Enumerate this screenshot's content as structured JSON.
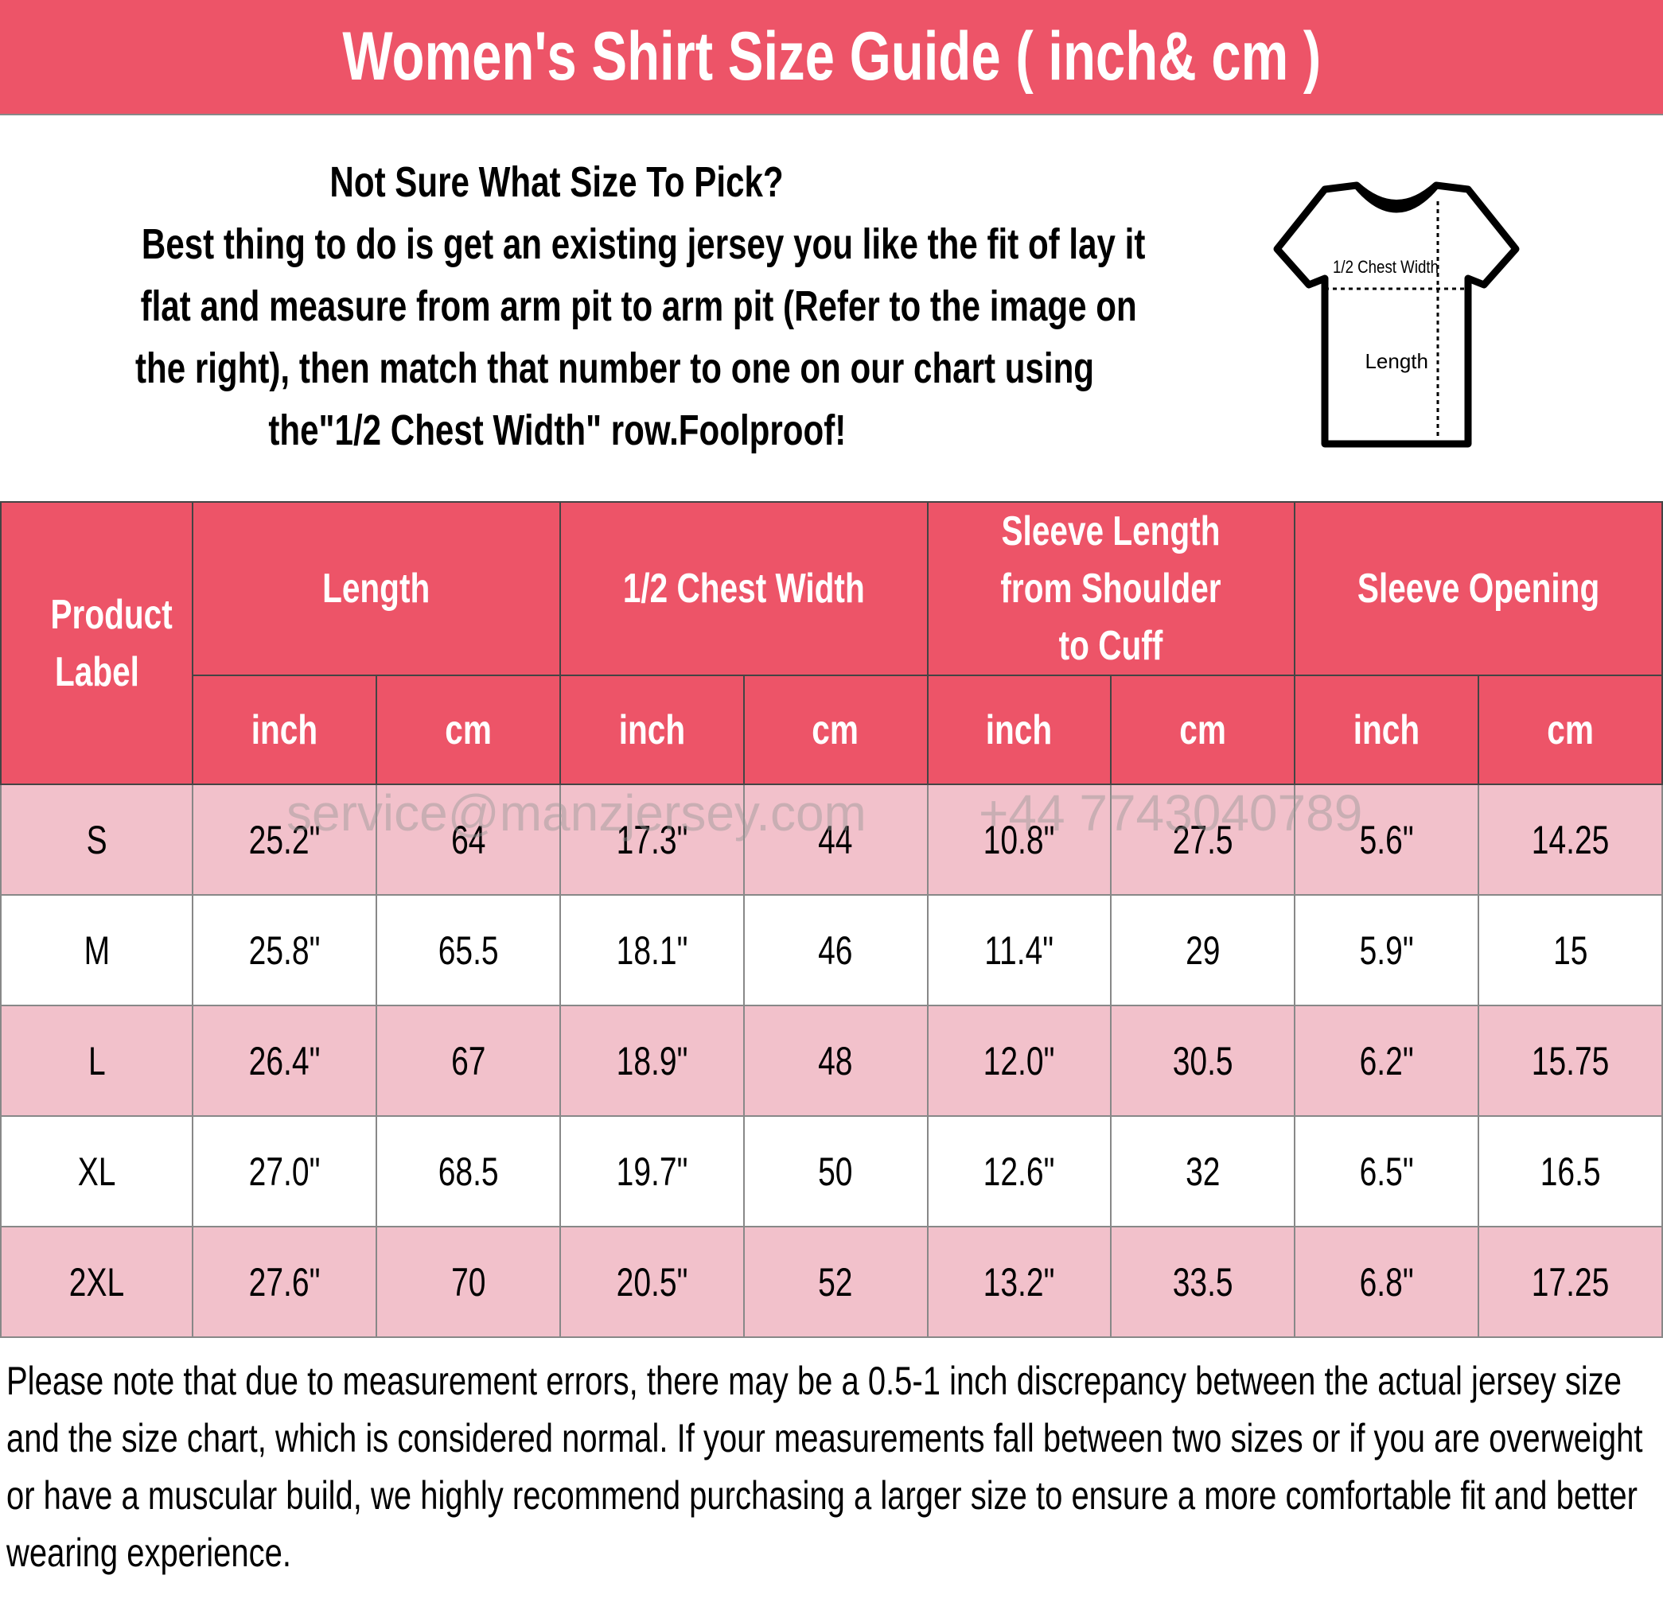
{
  "title": "Women's Shirt Size Guide ( inch& cm )",
  "intro": {
    "lines": [
      "Not Sure What Size To Pick?",
      "Best thing to do is get an existing jersey you like the fit of lay it",
      "flat and measure from arm pit to arm pit (Refer to the image on",
      "the right), then match that number to one on our chart using",
      "the\"1/2 Chest Width\" row.Foolproof!"
    ]
  },
  "diagram": {
    "chest_label": "1/2 Chest Width",
    "length_label": "Length"
  },
  "table": {
    "label_header": "Product Label",
    "groups": [
      "Length",
      "1/2 Chest Width",
      "Sleeve Length from Shoulder to Cuff",
      "Sleeve Opening"
    ],
    "units": [
      "inch",
      "cm",
      "inch",
      "cm",
      "inch",
      "cm",
      "inch",
      "cm"
    ],
    "rows": [
      [
        "S",
        "25.2\"",
        "64",
        "17.3\"",
        "44",
        "10.8\"",
        "27.5",
        "5.6\"",
        "14.25"
      ],
      [
        "M",
        "25.8\"",
        "65.5",
        "18.1\"",
        "46",
        "11.4\"",
        "29",
        "5.9\"",
        "15"
      ],
      [
        "L",
        "26.4\"",
        "67",
        "18.9\"",
        "48",
        "12.0\"",
        "30.5",
        "6.2\"",
        "15.75"
      ],
      [
        "XL",
        "27.0\"",
        "68.5",
        "19.7\"",
        "50",
        "12.6\"",
        "32",
        "6.5\"",
        "16.5"
      ],
      [
        "2XL",
        "27.6\"",
        "70",
        "20.5\"",
        "52",
        "13.2\"",
        "33.5",
        "6.8\"",
        "17.25"
      ]
    ]
  },
  "watermark": {
    "email": "service@manzjersey.com",
    "phone": "+44 7743040789"
  },
  "note": "Please note that due to measurement errors, there may be a 0.5-1 inch discrepancy between the actual jersey size and the size chart, which is considered normal. If your measurements fall between two sizes or if you are overweight or have a muscular build, we highly recommend purchasing a larger size to ensure a more comfortable fit and better wearing experience.",
  "colors": {
    "header": "#ed5468",
    "row_alt": "#f2c1cb"
  }
}
